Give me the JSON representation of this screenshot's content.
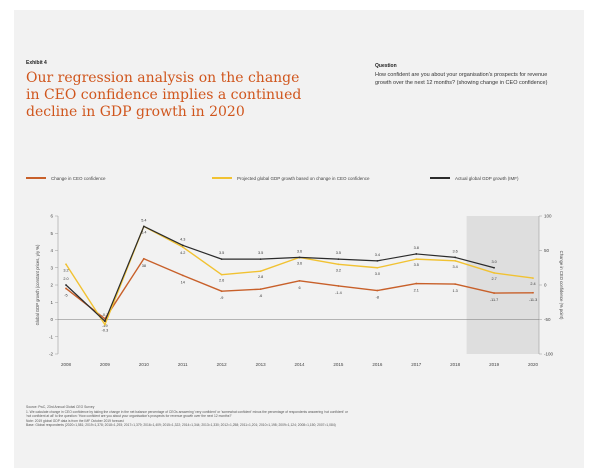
{
  "exhibit_label": "Exhibit 4",
  "headline": "Our regression analysis on the change in CEO confidence implies a continued decline in GDP growth in 2020",
  "question_label": "Question",
  "question_text": "How confident are you about your organisation's prospects for revenue growth over the next 12 months? (showing change in CEO confidence)",
  "colors": {
    "page_background": "#f2f2f2",
    "ceo_confidence": "#c8602a",
    "projected_gdp": "#f1c232",
    "actual_gdp": "#2b2b2b",
    "forecast_shade": "#dedede",
    "headline": "#d0561d"
  },
  "chart_data": {
    "type": "line",
    "x": [
      "2008",
      "2009",
      "2010",
      "2011",
      "2012",
      "2013",
      "2014",
      "2015",
      "2016",
      "2017",
      "2018",
      "2019",
      "2020"
    ],
    "forecast_years": [
      "2019",
      "2020"
    ],
    "series": [
      {
        "name": "Change in CEO confidence",
        "axis": "right",
        "values": [
          -5,
          -49,
          38,
          14,
          -9,
          -6,
          6,
          -1.4,
          -8,
          2.1,
          1.3,
          -11.7,
          -11.3
        ],
        "labels": [
          "-5",
          "-49",
          "38",
          "14",
          "-9",
          "-6",
          "6",
          "-1.4",
          "-8",
          "2.1",
          "1.3",
          "-11.7",
          "-11.3"
        ]
      },
      {
        "name": "Projected global GDP growth based on change in CEO confidence",
        "axis": "left",
        "values": [
          3.2,
          -0.3,
          5.4,
          4.2,
          2.6,
          2.8,
          3.6,
          3.2,
          3.0,
          3.5,
          3.4,
          2.7,
          2.4
        ],
        "labels": [
          "3.2",
          "-0.3",
          "5.4",
          "4.2",
          "2.6",
          "2.8",
          "3.6",
          "3.2",
          "3.0",
          "3.5",
          "3.4",
          "2.7",
          "2.4"
        ]
      },
      {
        "name": "Actual global GDP growth (IMF)",
        "axis": "left",
        "values": [
          2.0,
          -0.1,
          5.4,
          4.3,
          3.5,
          3.5,
          3.6,
          3.5,
          3.4,
          3.8,
          3.6,
          3.0,
          null
        ],
        "labels": [
          "2.0",
          "-0.1",
          "5.4",
          "4.3",
          "3.5",
          "3.5",
          "3.6",
          "3.5",
          "3.4",
          "3.8",
          "3.6",
          "3.0",
          ""
        ]
      }
    ],
    "ylabel_left": "Global GDP growth (constant prices, y/y %)",
    "ylabel_right": "Change in CEO confidence (% point)",
    "ylim_left": [
      -2,
      6
    ],
    "yticks_left": [
      "6",
      "5",
      "4",
      "3",
      "2",
      "1",
      "0",
      "-1",
      "-2"
    ],
    "ylim_right": [
      -100,
      100
    ],
    "yticks_right": [
      "100",
      "50",
      "0",
      "-50",
      "-100"
    ],
    "zero_line": true,
    "grid": false,
    "legend_position": "top"
  },
  "notes": [
    "Source: PwC, 23rd Annual Global CEO Survey",
    "1. We calculate change in CEO confidence by taking the change in the net balance percentage of CEOs answering 'very confident' or 'somewhat confident' minus the percentage of respondents answering 'not confident' or",
    "'not confident at all' to the question: 'How confident are you about your organisation's prospects for revenue growth over the next 12 months?'",
    "Note: 2019 global GDP data is from the IMF October 2019 forecast",
    "Base: Global respondents (2020=1,581; 2019=1,378; 2018=1,293; 2017=1,379; 2016=1,409; 2015=1,322; 2014=1,344; 2013=1,330; 2012=1,258; 2011=1,201; 2010=1,198; 2009=1,124; 2008=1,150; 2007=1,084)"
  ]
}
